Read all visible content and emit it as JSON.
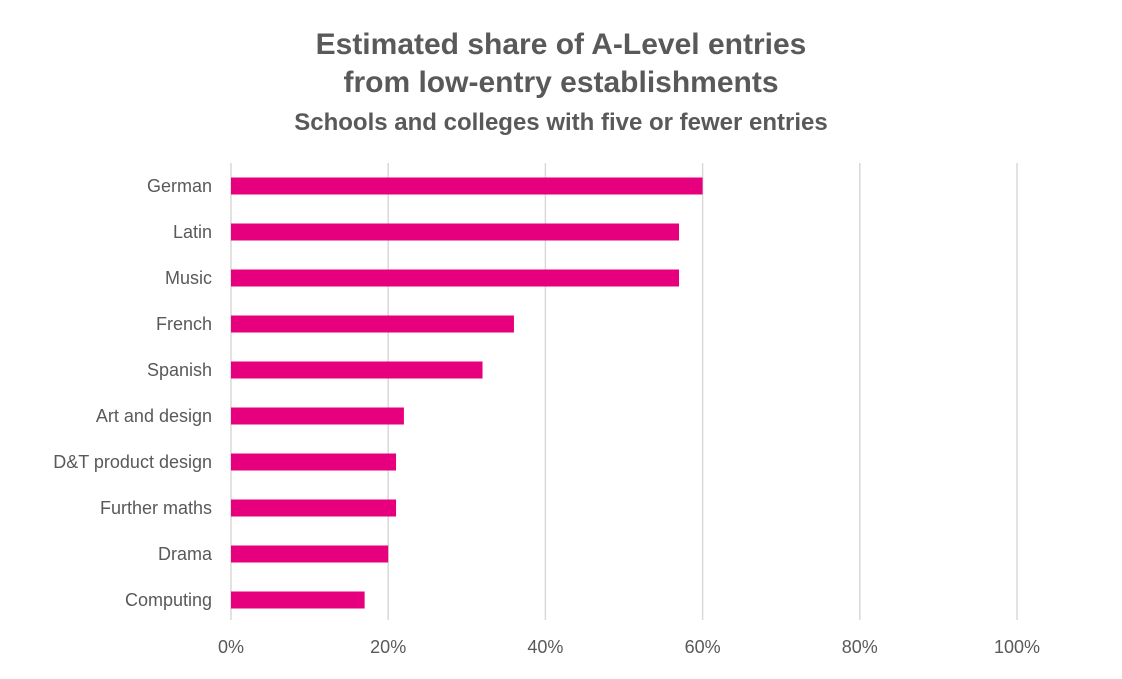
{
  "chart_data": {
    "type": "bar",
    "orientation": "horizontal",
    "title": "Estimated share of A-Level entries",
    "title_line2": "from low-entry establishments",
    "subtitle": "Schools and colleges with five or fewer entries",
    "categories": [
      "German",
      "Latin",
      "Music",
      "French",
      "Spanish",
      "Art and design",
      "D&T product design",
      "Further maths",
      "Drama",
      "Computing"
    ],
    "values": [
      60,
      57,
      57,
      36,
      32,
      22,
      21,
      21,
      20,
      17
    ],
    "xlim": [
      0,
      100
    ],
    "xticks": [
      0,
      20,
      40,
      60,
      80,
      100
    ],
    "xtick_labels": [
      "0%",
      "20%",
      "40%",
      "60%",
      "80%",
      "100%"
    ],
    "xlabel": "",
    "ylabel": "",
    "grid": "vertical",
    "legend": "none",
    "bar_color": "#E6007E",
    "grid_color": "#D9D9D9",
    "text_color": "#595959"
  }
}
